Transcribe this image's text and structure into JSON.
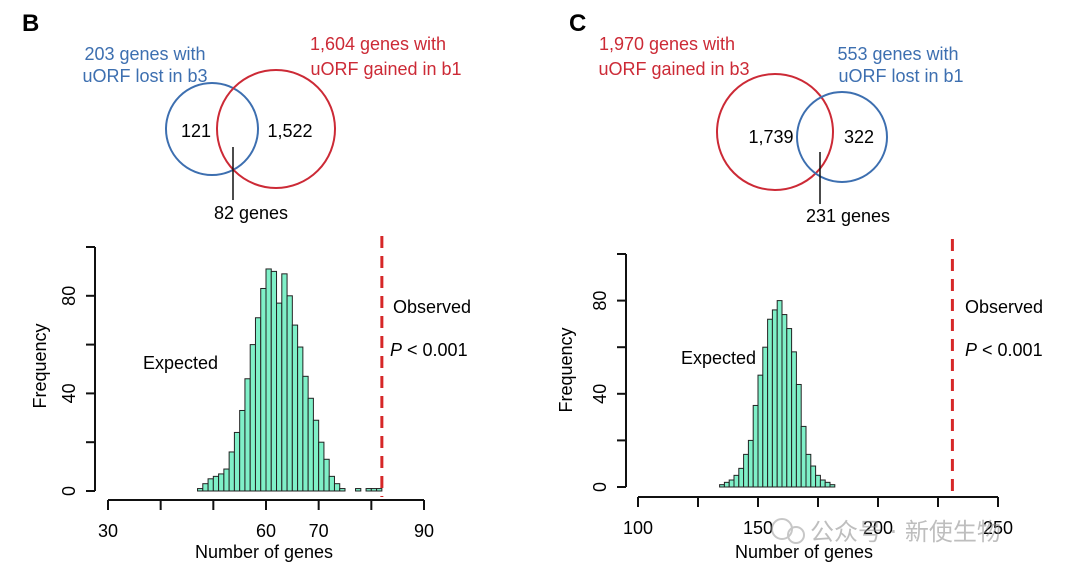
{
  "panels": [
    {
      "letter": "B",
      "venn": {
        "left": {
          "label_line1": "203 genes with",
          "label_line2": "uORF lost in b3",
          "count": "121",
          "color": "#3d6fb0"
        },
        "right": {
          "label_line1": "1,604 genes with",
          "label_line2": "uORF gained in b1",
          "count": "1,522",
          "color": "#cc2a36"
        },
        "overlap_label": "82 genes"
      },
      "chart_data": {
        "type": "histogram",
        "title": "",
        "xlabel": "Number of genes",
        "ylabel": "Frequency",
        "xlim": [
          30,
          90
        ],
        "ylim": [
          0,
          100
        ],
        "xticks": [
          30,
          40,
          50,
          60,
          70,
          80,
          90
        ],
        "xtick_labels": [
          "30",
          "",
          "",
          "60",
          "70",
          "",
          "90"
        ],
        "yticks": [
          0,
          40,
          80
        ],
        "bin_start": 47,
        "bin_width": 1,
        "values": [
          1,
          3,
          5,
          6,
          7,
          9,
          16,
          24,
          33,
          46,
          60,
          71,
          83,
          91,
          90,
          77,
          89,
          80,
          68,
          59,
          47,
          38,
          29,
          20,
          13,
          6,
          3,
          1,
          0,
          0,
          1,
          0,
          1,
          1,
          1
        ],
        "expected_label": "Expected",
        "observed": {
          "value": 82,
          "label": "Observed",
          "p_label": "P",
          "p_rest": " < 0.001"
        },
        "bar_color": "#7ff0c8",
        "line_color": "#d62728"
      }
    },
    {
      "letter": "C",
      "venn": {
        "left": {
          "label_line1": "1,970 genes with",
          "label_line2": "uORF gained in b3",
          "count": "1,739",
          "color": "#cc2a36"
        },
        "right": {
          "label_line1": "553 genes with",
          "label_line2": "uORF lost in b1",
          "count": "322",
          "color": "#3d6fb0"
        },
        "overlap_label": "231 genes"
      },
      "chart_data": {
        "type": "histogram",
        "title": "",
        "xlabel": "Number of genes",
        "ylabel": "Frequency",
        "xlim": [
          100,
          250
        ],
        "ylim": [
          0,
          100
        ],
        "xticks": [
          100,
          125,
          150,
          175,
          200,
          225,
          250
        ],
        "xtick_labels": [
          "100",
          "",
          "150",
          "",
          "200",
          "",
          "250"
        ],
        "yticks": [
          0,
          40,
          80
        ],
        "bin_start": 134,
        "bin_width": 2,
        "values": [
          1,
          2,
          3,
          5,
          8,
          14,
          20,
          35,
          48,
          60,
          72,
          76,
          80,
          74,
          68,
          58,
          44,
          26,
          14,
          9,
          5,
          3,
          2,
          1
        ],
        "expected_label": "Expected",
        "observed": {
          "value": 231,
          "label": "Observed",
          "p_label": "P",
          "p_rest": " < 0.001"
        },
        "bar_color": "#7ff0c8",
        "line_color": "#d62728"
      }
    }
  ],
  "watermark": "公众号 · 新使生物"
}
